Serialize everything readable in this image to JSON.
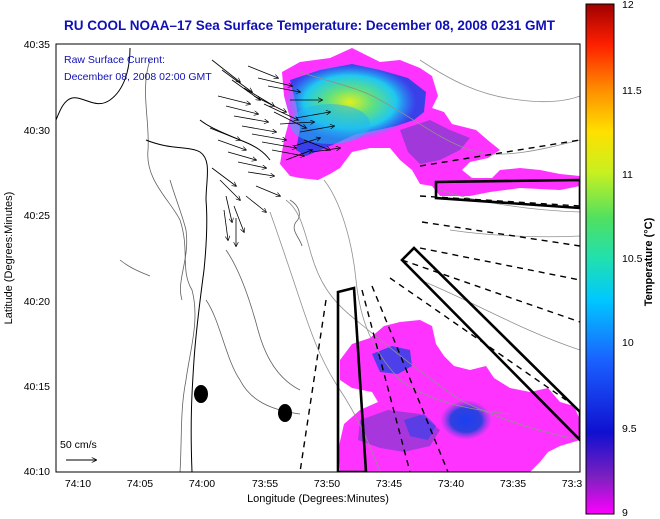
{
  "title": "RU COOL  NOAA–17  Sea Surface Temperature:  December 08, 2008 0231 GMT",
  "legend": {
    "line1": "Raw Surface Current:",
    "line2": "December 08, 2008 02:00 GMT",
    "scale_label": "50 cm/s"
  },
  "axes": {
    "xlabel": "Longitude (Degrees:Minutes)",
    "ylabel": "Latitude (Degrees:Minutes)",
    "xticks": [
      "74:10",
      "74:05",
      "74:00",
      "73:55",
      "73:50",
      "73:45",
      "73:40",
      "73:35",
      "73:3"
    ],
    "yticks": [
      "40:35",
      "40:30",
      "40:25",
      "40:20",
      "40:15",
      "40:10"
    ]
  },
  "colorbar": {
    "label": "Temperature (°C)",
    "ticks": [
      "12",
      "11.5",
      "11",
      "10.5",
      "10",
      "9.5",
      "9"
    ],
    "min": 9,
    "max": 12
  },
  "colors": {
    "title": "#1010b8",
    "land": "#ffffff",
    "sst_cold": "#ff33ff",
    "sst_warm": "#d4e820"
  }
}
